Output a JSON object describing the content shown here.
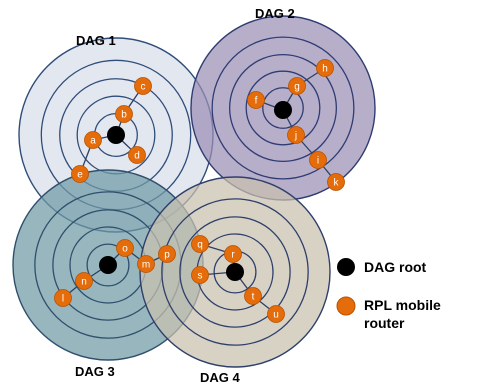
{
  "dags": [
    {
      "name": "DAG 1",
      "fill": "#d8dee9",
      "ring": "#2f4d7a"
    },
    {
      "name": "DAG 2",
      "fill": "#9b8fb4",
      "ring": "#2f3c74"
    },
    {
      "name": "DAG 3",
      "fill": "#6f9aa5",
      "ring": "#2f4f6d"
    },
    {
      "name": "DAG 4",
      "fill": "#c9c0ae",
      "ring": "#2f3f6c"
    }
  ],
  "nodes": [
    "a",
    "b",
    "c",
    "d",
    "e",
    "f",
    "g",
    "h",
    "i",
    "j",
    "k",
    "l",
    "m",
    "n",
    "o",
    "p",
    "q",
    "r",
    "s",
    "t",
    "u"
  ],
  "legend": {
    "root_label": "DAG root",
    "router_label_line1": "RPL mobile",
    "router_label_line2": "router"
  },
  "colors": {
    "router": "#e46c0a",
    "router_stroke": "#b85200",
    "root": "#000000",
    "edge": "#2e3f63"
  }
}
